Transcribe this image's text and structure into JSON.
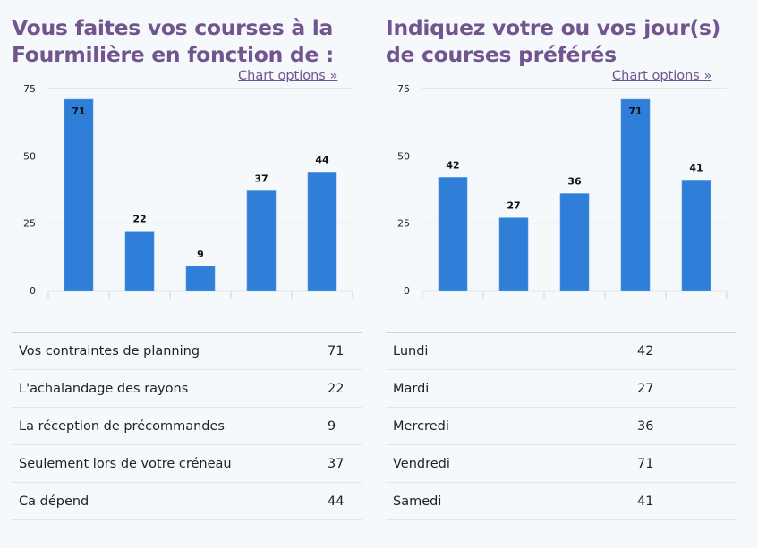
{
  "colors": {
    "title": "#72558f",
    "bar": "#2f7ed8",
    "grid": "#d0d3d8"
  },
  "panels": [
    {
      "title_lines": [
        "Vous faites vos courses à la",
        "Fourmilière en fonction de :"
      ],
      "chart_options_label": "Chart options »",
      "table": [
        {
          "label": "Vos contraintes de planning",
          "value": "71"
        },
        {
          "label": "L'achalandage des rayons",
          "value": "22"
        },
        {
          "label": "La réception de précommandes",
          "value": "9"
        },
        {
          "label": "Seulement lors de votre créneau",
          "value": "37"
        },
        {
          "label": "Ca dépend",
          "value": "44"
        }
      ]
    },
    {
      "title_lines": [
        "Indiquez votre ou vos jour(s)",
        "de courses préférés"
      ],
      "chart_options_label": "Chart options »",
      "table": [
        {
          "label": "Lundi",
          "value": "42"
        },
        {
          "label": "Mardi",
          "value": "27"
        },
        {
          "label": "Mercredi",
          "value": "36"
        },
        {
          "label": "Vendredi",
          "value": "71"
        },
        {
          "label": "Samedi",
          "value": "41"
        }
      ]
    }
  ],
  "chart_data": [
    {
      "type": "bar",
      "title": "Vous faites vos courses à la Fourmilière en fonction de :",
      "categories": [
        "Vos contraintes de planning",
        "L'achalandage des rayons",
        "La réception de précommandes",
        "Seulement lors de votre créneau",
        "Ca dépend"
      ],
      "values": [
        71,
        22,
        9,
        37,
        44
      ],
      "xlabel": "",
      "ylabel": "",
      "ylim": [
        0,
        75
      ],
      "yticks": [
        0,
        25,
        50,
        75
      ],
      "grid": true,
      "data_labels": true
    },
    {
      "type": "bar",
      "title": "Indiquez votre ou vos jour(s) de courses préférés",
      "categories": [
        "Lundi",
        "Mardi",
        "Mercredi",
        "Vendredi",
        "Samedi"
      ],
      "values": [
        42,
        27,
        36,
        71,
        41
      ],
      "xlabel": "",
      "ylabel": "",
      "ylim": [
        0,
        75
      ],
      "yticks": [
        0,
        25,
        50,
        75
      ],
      "grid": true,
      "data_labels": true
    }
  ]
}
